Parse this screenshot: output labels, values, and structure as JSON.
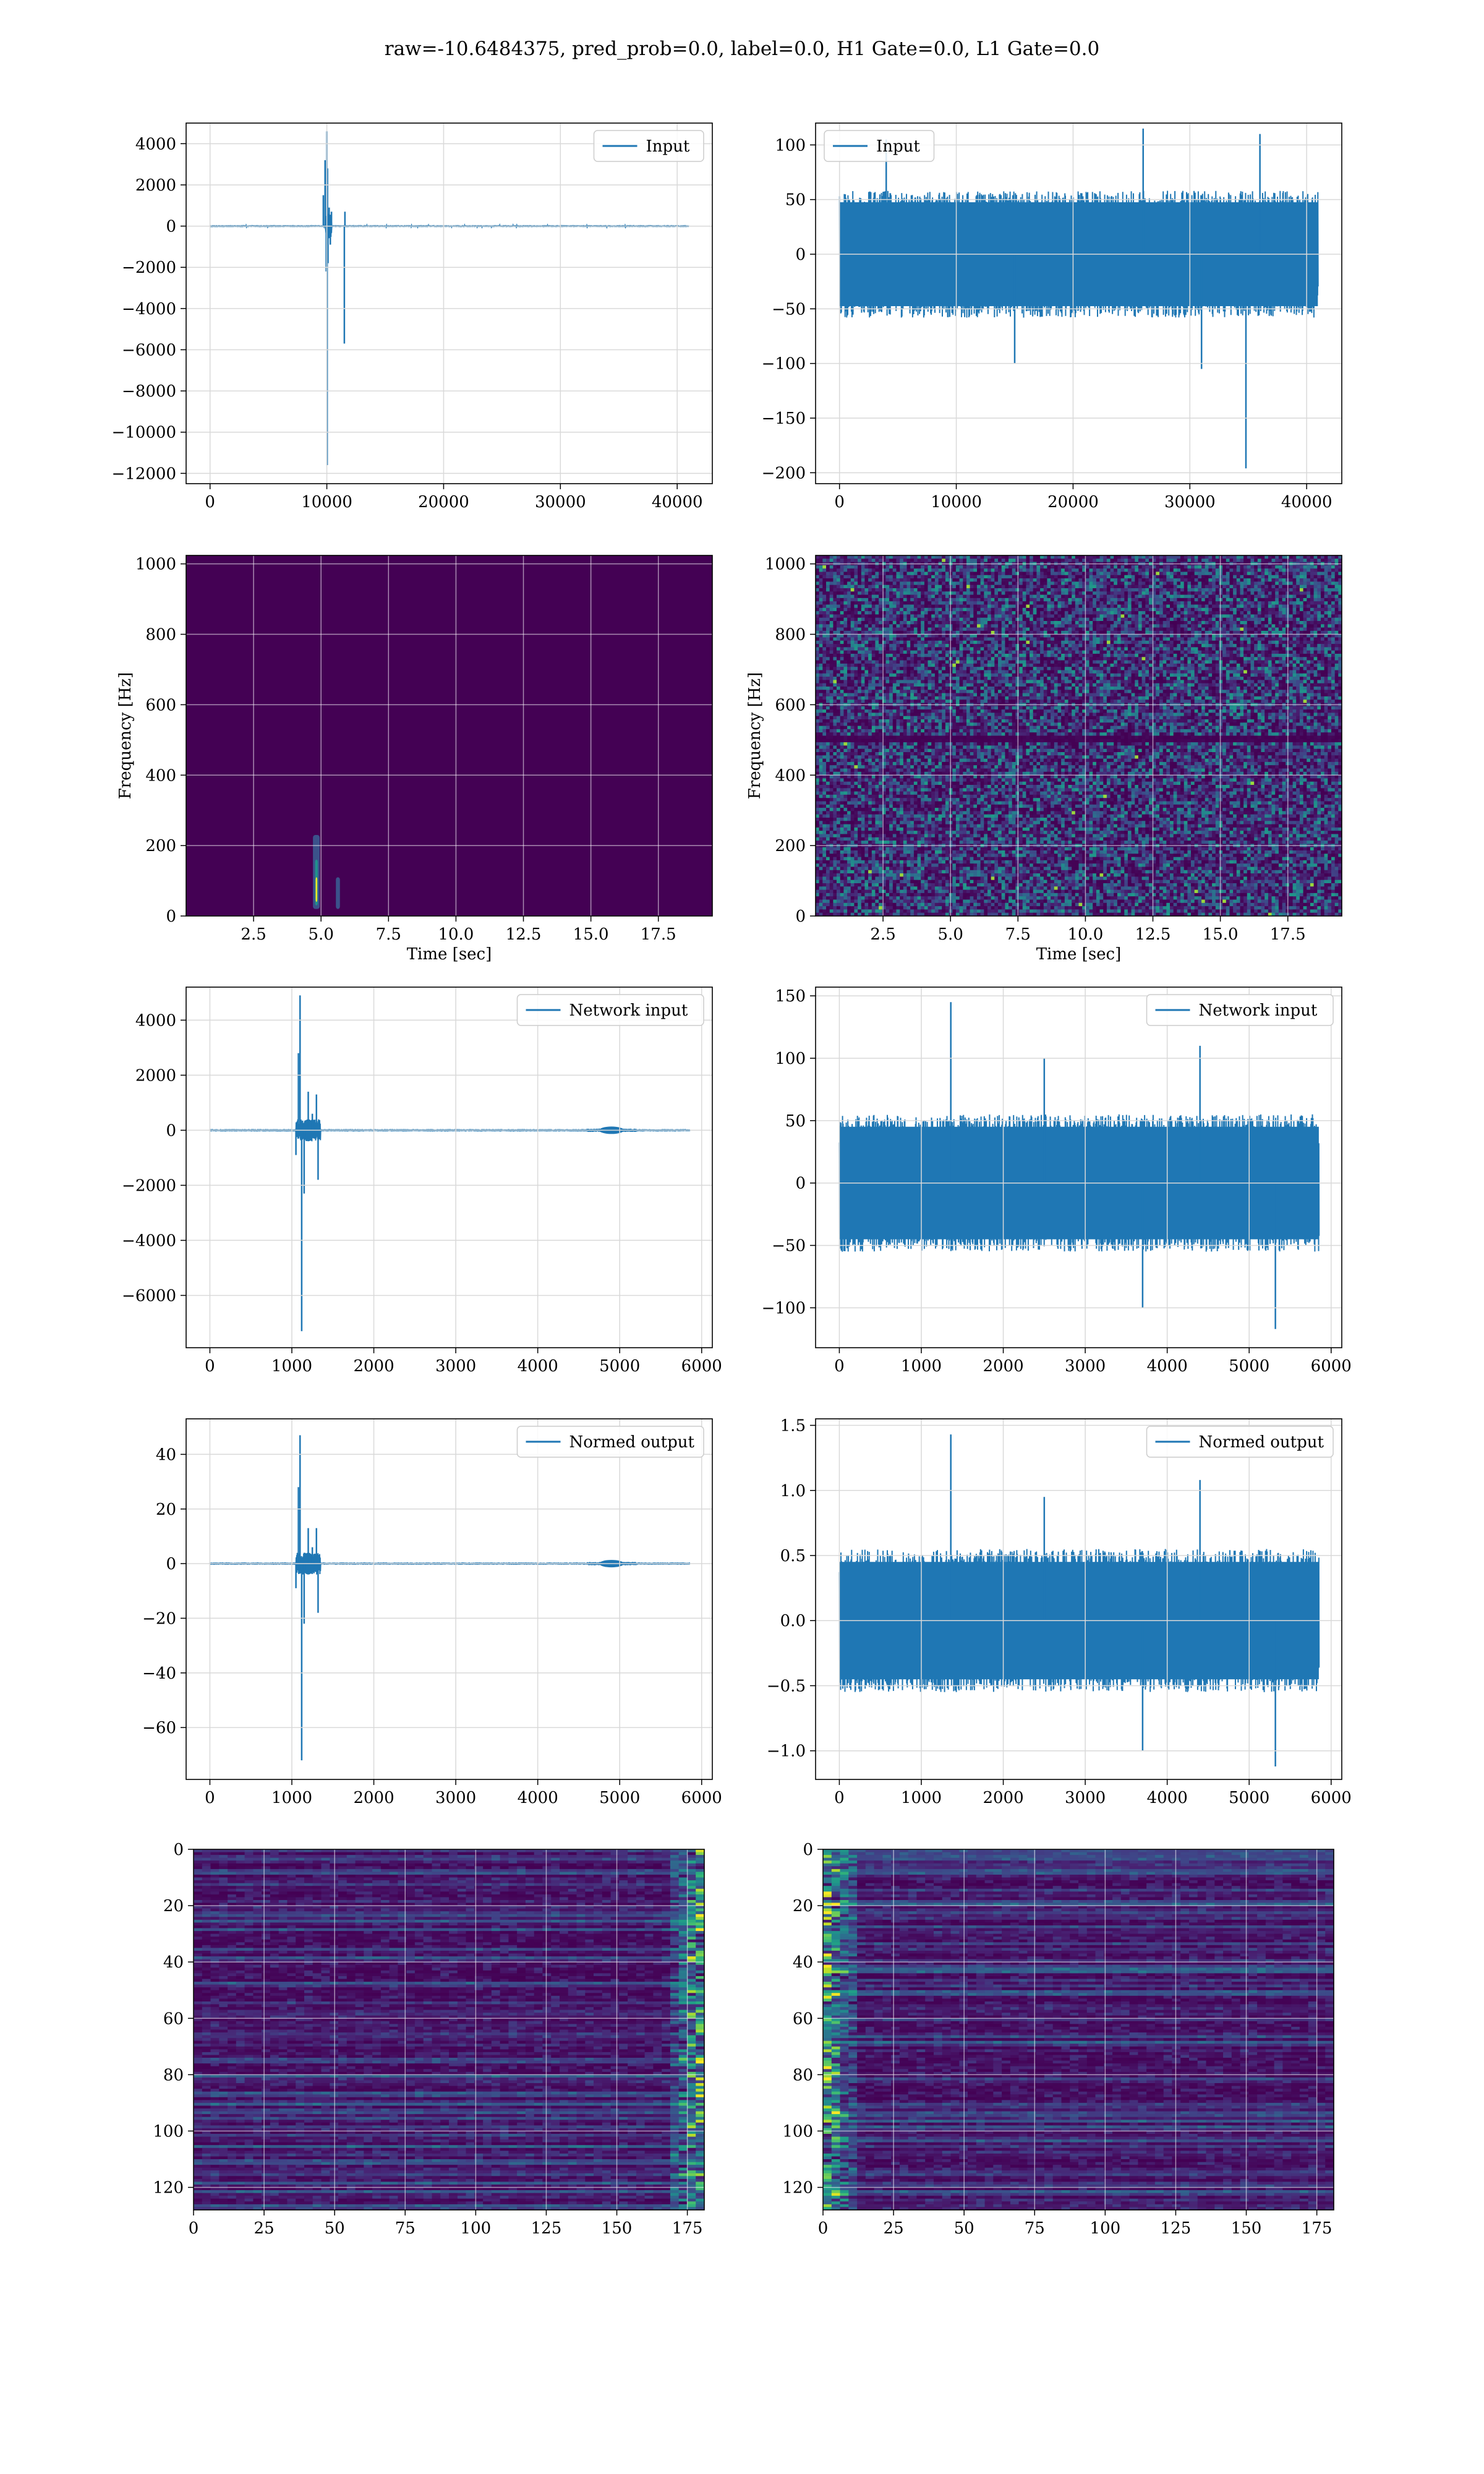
{
  "figure": {
    "suptitle": "raw=-10.6484375, pred_prob=0.0, label=0.0, H1 Gate=0.0, L1 Gate=0.0",
    "line_color": "#1f77b4"
  },
  "chart_data": [
    {
      "id": "input-h1",
      "type": "line",
      "series": [
        {
          "name": "Input",
          "values_desc": "strain"
        }
      ],
      "legend": "Input",
      "legend_loc": "top-right",
      "x": [
        0,
        40960
      ],
      "xlim": [
        -2048,
        43008
      ],
      "ylim": [
        -12500,
        5000
      ],
      "xticks": [
        0,
        10000,
        20000,
        30000,
        40000
      ],
      "yticks": [
        -12000,
        -10000,
        -8000,
        -6000,
        -4000,
        -2000,
        0,
        2000,
        4000
      ],
      "noise_amp": 45,
      "spikes": [
        [
          9700,
          1500
        ],
        [
          9850,
          3200
        ],
        [
          9950,
          -2200
        ],
        [
          10000,
          4600
        ],
        [
          10030,
          -11600
        ],
        [
          10060,
          2800
        ],
        [
          10100,
          -1800
        ],
        [
          10200,
          900
        ],
        [
          10400,
          700
        ],
        [
          11500,
          -5700
        ],
        [
          11550,
          700
        ],
        [
          10300,
          -900
        ]
      ],
      "blobs": [
        [
          9900,
          10400,
          600
        ]
      ]
    },
    {
      "id": "input-l1",
      "type": "line",
      "legend": "Input",
      "legend_loc": "top-left",
      "x": [
        0,
        40960
      ],
      "xlim": [
        -2048,
        43008
      ],
      "ylim": [
        -210,
        120
      ],
      "xticks": [
        0,
        10000,
        20000,
        30000,
        40000
      ],
      "yticks": [
        -200,
        -150,
        -100,
        -50,
        0,
        50,
        100
      ],
      "noise_amp": 58,
      "spikes": [
        [
          34800,
          -196
        ],
        [
          26000,
          115
        ],
        [
          36000,
          110
        ],
        [
          4000,
          105
        ],
        [
          15000,
          -100
        ],
        [
          31000,
          -105
        ]
      ],
      "blobs": []
    },
    {
      "id": "spec-h1",
      "type": "heatmap",
      "xlabel": "Time [sec]",
      "ylabel": "Frequency [Hz]",
      "xlim": [
        0,
        19.5
      ],
      "ylim": [
        0,
        1024
      ],
      "xticks": [
        2.5,
        5.0,
        7.5,
        10.0,
        12.5,
        15.0,
        17.5
      ],
      "xtick_labels": [
        "2.5",
        "5.0",
        "7.5",
        "10.0",
        "12.5",
        "15.0",
        "17.5"
      ],
      "yticks": [
        0,
        200,
        400,
        600,
        800,
        1000
      ],
      "background": "#440154",
      "features": [
        {
          "t0": 4.7,
          "t1": 4.95,
          "f0": 20,
          "f1": 230,
          "color": "#3b528b"
        },
        {
          "t0": 4.78,
          "t1": 4.88,
          "f0": 30,
          "f1": 160,
          "color": "#21918c"
        },
        {
          "t0": 4.8,
          "t1": 4.86,
          "f0": 40,
          "f1": 110,
          "color": "#fde725"
        },
        {
          "t0": 5.55,
          "t1": 5.7,
          "f0": 20,
          "f1": 110,
          "color": "#3b528b"
        }
      ]
    },
    {
      "id": "spec-l1",
      "type": "heatmap",
      "xlabel": "Time [sec]",
      "ylabel": "Frequency [Hz]",
      "xlim": [
        0,
        19.5
      ],
      "ylim": [
        0,
        1024
      ],
      "xticks": [
        2.5,
        5.0,
        7.5,
        10.0,
        12.5,
        15.0,
        17.5
      ],
      "xtick_labels": [
        "2.5",
        "5.0",
        "7.5",
        "10.0",
        "12.5",
        "15.0",
        "17.5"
      ],
      "yticks": [
        0,
        200,
        400,
        600,
        800,
        1000
      ],
      "background": "#46136d",
      "texture": "noise"
    },
    {
      "id": "net-h1",
      "type": "line",
      "legend": "Network input",
      "legend_loc": "top-right",
      "x": [
        0,
        5850
      ],
      "xlim": [
        -290,
        6130
      ],
      "ylim": [
        -7900,
        5200
      ],
      "xticks": [
        0,
        1000,
        2000,
        3000,
        4000,
        5000,
        6000
      ],
      "yticks": [
        -6000,
        -4000,
        -2000,
        0,
        2000,
        4000
      ],
      "noise_amp": 40,
      "spikes": [
        [
          1080,
          2800
        ],
        [
          1100,
          4900
        ],
        [
          1120,
          -7300
        ],
        [
          1150,
          -2300
        ],
        [
          1200,
          1400
        ],
        [
          1300,
          1300
        ],
        [
          1320,
          -1800
        ],
        [
          1050,
          -900
        ],
        [
          1250,
          600
        ]
      ],
      "blobs": [
        [
          1050,
          1350,
          400
        ],
        [
          4600,
          5200,
          60
        ]
      ]
    },
    {
      "id": "net-l1",
      "type": "line",
      "legend": "Network input",
      "legend_loc": "top-right",
      "x": [
        0,
        5850
      ],
      "xlim": [
        -290,
        6130
      ],
      "ylim": [
        -132,
        157
      ],
      "xticks": [
        0,
        1000,
        2000,
        3000,
        4000,
        5000,
        6000
      ],
      "yticks": [
        -100,
        -50,
        0,
        50,
        100,
        150
      ],
      "noise_amp": 55,
      "spikes": [
        [
          1360,
          145
        ],
        [
          5320,
          -117
        ],
        [
          4400,
          110
        ],
        [
          2500,
          100
        ],
        [
          3700,
          -100
        ]
      ],
      "blobs": []
    },
    {
      "id": "norm-h1",
      "type": "line",
      "legend": "Normed output",
      "legend_loc": "top-right",
      "x": [
        0,
        5850
      ],
      "xlim": [
        -290,
        6130
      ],
      "ylim": [
        -79,
        53
      ],
      "xticks": [
        0,
        1000,
        2000,
        3000,
        4000,
        5000,
        6000
      ],
      "yticks": [
        -60,
        -40,
        -20,
        0,
        20,
        40
      ],
      "noise_amp": 0.4,
      "spikes": [
        [
          1080,
          28
        ],
        [
          1100,
          47
        ],
        [
          1120,
          -72
        ],
        [
          1150,
          -22
        ],
        [
          1200,
          13
        ],
        [
          1300,
          13
        ],
        [
          1320,
          -18
        ],
        [
          1050,
          -9
        ],
        [
          1250,
          6
        ]
      ],
      "blobs": [
        [
          1050,
          1350,
          4
        ],
        [
          4600,
          5200,
          0.6
        ]
      ]
    },
    {
      "id": "norm-l1",
      "type": "line",
      "legend": "Normed output",
      "legend_loc": "top-right",
      "x": [
        0,
        5850
      ],
      "xlim": [
        -290,
        6130
      ],
      "ylim": [
        -1.22,
        1.55
      ],
      "xticks": [
        0,
        1000,
        2000,
        3000,
        4000,
        5000,
        6000
      ],
      "yticks": [
        -1.0,
        -0.5,
        0.0,
        0.5,
        1.0,
        1.5
      ],
      "ytick_labels": [
        "−1.0",
        "−0.5",
        "0.0",
        "0.5",
        "1.0",
        "1.5"
      ],
      "noise_amp": 0.55,
      "spikes": [
        [
          1360,
          1.43
        ],
        [
          5320,
          -1.12
        ],
        [
          4400,
          1.08
        ],
        [
          2500,
          0.95
        ],
        [
          3700,
          -1.0
        ]
      ],
      "blobs": []
    },
    {
      "id": "emb-h1",
      "type": "heatmap",
      "xlim": [
        0,
        181
      ],
      "ylim": [
        128,
        0
      ],
      "xticks": [
        0,
        25,
        50,
        75,
        100,
        125,
        150,
        175
      ],
      "yticks": [
        0,
        20,
        40,
        60,
        80,
        100,
        120
      ],
      "background": "#440154",
      "texture": "rows-edge-right"
    },
    {
      "id": "emb-l1",
      "type": "heatmap",
      "xlim": [
        0,
        181
      ],
      "ylim": [
        128,
        0
      ],
      "xticks": [
        0,
        25,
        50,
        75,
        100,
        125,
        150,
        175
      ],
      "yticks": [
        0,
        20,
        40,
        60,
        80,
        100,
        120
      ],
      "background": "#440154",
      "texture": "rows-edge-left"
    }
  ]
}
